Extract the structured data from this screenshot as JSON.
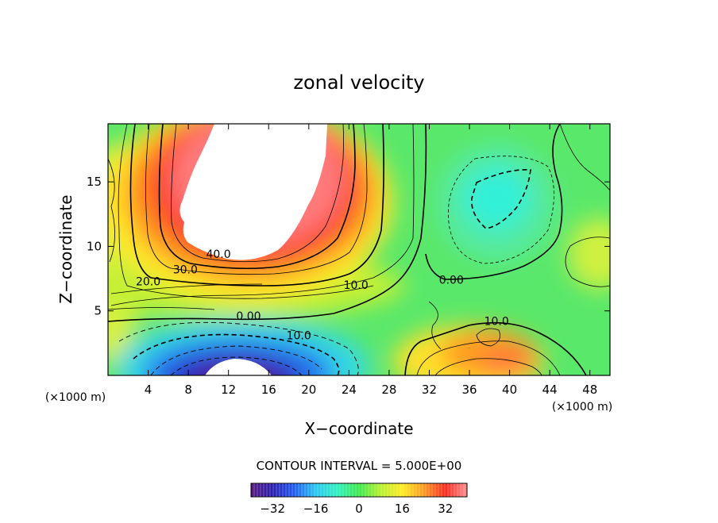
{
  "chart_data": {
    "type": "heatmap",
    "title": "zonal velocity",
    "xlabel": "X−coordinate",
    "ylabel": "Z−coordinate",
    "x_unit_left": "(×1000 m)",
    "x_unit_right": "(×1000 m)",
    "xlim": [
      0,
      50
    ],
    "ylim": [
      0,
      19.5
    ],
    "x_ticks": [
      4,
      8,
      12,
      16,
      20,
      24,
      28,
      32,
      36,
      40,
      44,
      48
    ],
    "y_ticks": [
      5,
      10,
      15
    ],
    "contour_interval_text": "CONTOUR INTERVAL = 5.000E+00",
    "contour_interval": 5,
    "colorbar": {
      "range": [
        -40,
        40
      ],
      "ticks": [
        -32,
        -16,
        0,
        16,
        32
      ],
      "colors": [
        "#5a1a7e",
        "#2a1fb0",
        "#1f5ef0",
        "#29c8f2",
        "#2ff0c0",
        "#3ee84a",
        "#b8f030",
        "#ffec20",
        "#ff9a20",
        "#ff2a20",
        "#ff9090"
      ]
    },
    "contour_labels": [
      {
        "text": "40.0",
        "x": 11,
        "y": 9.4
      },
      {
        "text": "30.0",
        "x": 7.7,
        "y": 8.2
      },
      {
        "text": "20.0",
        "x": 4,
        "y": 7.3
      },
      {
        "text": "10.0",
        "x": 24.7,
        "y": 7.0
      },
      {
        "text": "0.00",
        "x": 34.2,
        "y": 7.4
      },
      {
        "text": "0.00",
        "x": 14,
        "y": 4.6
      },
      {
        "text": "10.0",
        "x": 19,
        "y": 3.1
      },
      {
        "text": "10.0",
        "x": 38.7,
        "y": 4.2
      }
    ],
    "features": [
      {
        "kind": "jet-max",
        "x": 14,
        "y": 16.5,
        "value": 55
      },
      {
        "kind": "reverse-min",
        "x": 14,
        "y": 0.6,
        "value": -38
      },
      {
        "kind": "local-min",
        "x": 37.8,
        "y": 14,
        "value": -12
      },
      {
        "kind": "local-max",
        "x": 39,
        "y": 1.5,
        "value": 28
      }
    ]
  }
}
